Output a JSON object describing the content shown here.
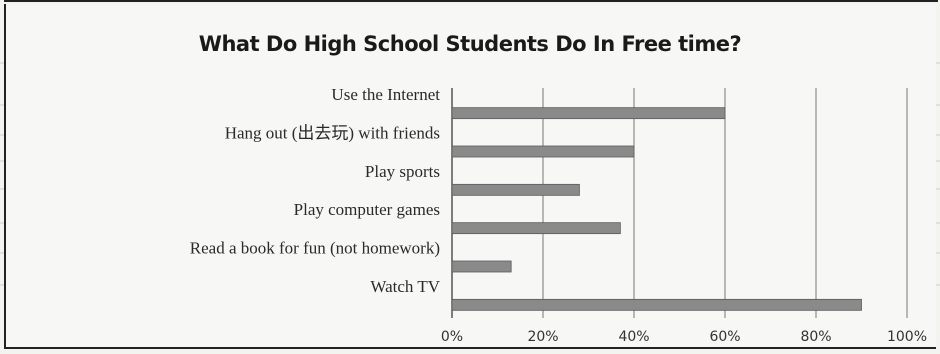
{
  "chart_data": {
    "type": "bar",
    "orientation": "horizontal",
    "title": "What Do High School Students Do In Free time?",
    "categories": [
      "Use the Internet",
      "Hang out (出去玩) with friends",
      "Play sports",
      "Play computer games",
      "Read a book for fun (not homework)",
      "Watch TV"
    ],
    "values": [
      60,
      40,
      28,
      37,
      13,
      90
    ],
    "xlim": [
      0,
      100
    ],
    "xticks": [
      "0%",
      "20%",
      "40%",
      "60%",
      "80%",
      "100%"
    ],
    "grid": true,
    "bar_color": "#8a8a8a"
  }
}
